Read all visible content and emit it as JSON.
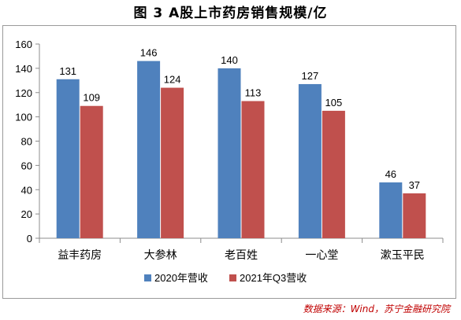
{
  "title": "图 3 A股上市药房销售规模/亿",
  "source": "数据来源：Wind，苏宁金融研究院",
  "chart_data": {
    "type": "bar",
    "title": "图 3 A股上市药房销售规模/亿",
    "xlabel": "",
    "ylabel": "",
    "ylim": [
      0,
      160
    ],
    "yticks": [
      0,
      20,
      40,
      60,
      80,
      100,
      120,
      140,
      160
    ],
    "grid": false,
    "legend_position": "bottom",
    "categories": [
      "益丰药房",
      "大参林",
      "老百姓",
      "一心堂",
      "漱玉平民"
    ],
    "series": [
      {
        "name": "2020年营收",
        "values": [
          131,
          146,
          140,
          127,
          46
        ],
        "color": "#4f81bd"
      },
      {
        "name": "2021年Q3营收",
        "values": [
          109,
          124,
          113,
          105,
          37
        ],
        "color": "#c0504d"
      }
    ]
  }
}
